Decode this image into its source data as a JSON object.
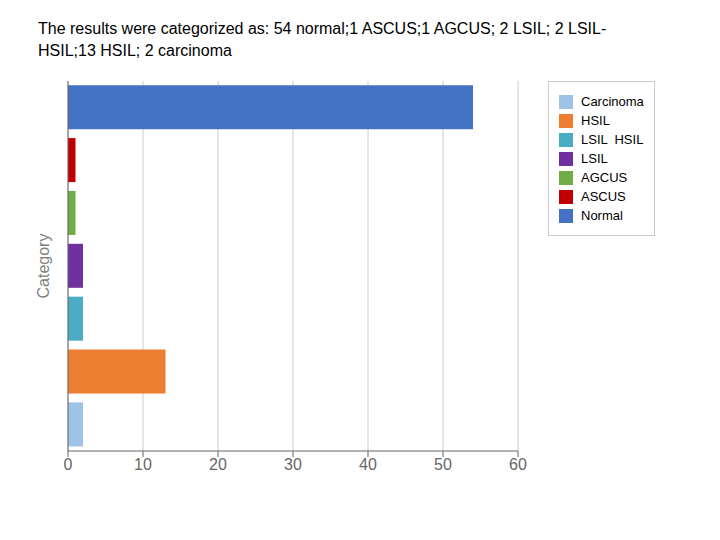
{
  "chart_data": {
    "type": "bar",
    "orientation": "horizontal",
    "title": "The results were categorized as: 54 normal;1 ASCUS;1 AGCUS; 2 LSIL; 2 LSIL-\nHSIL;13 HSIL; 2 carcinoma",
    "categories": [
      "Carcinoma",
      "HSIL",
      "LSIL  HSIL",
      "LSIL",
      "AGCUS",
      "ASCUS",
      "Normal"
    ],
    "values": [
      2,
      13,
      2,
      2,
      1,
      1,
      54
    ],
    "colors": [
      "#9DC3E6",
      "#ED7D31",
      "#4BACC6",
      "#7030A0",
      "#70AD47",
      "#C00000",
      "#4472C4"
    ],
    "ylabel": "Category",
    "xlim": [
      0,
      60
    ],
    "xticks": [
      0,
      10,
      20,
      30,
      40,
      50,
      60
    ],
    "grid": true,
    "legend": "right",
    "tick_labels": "x"
  }
}
